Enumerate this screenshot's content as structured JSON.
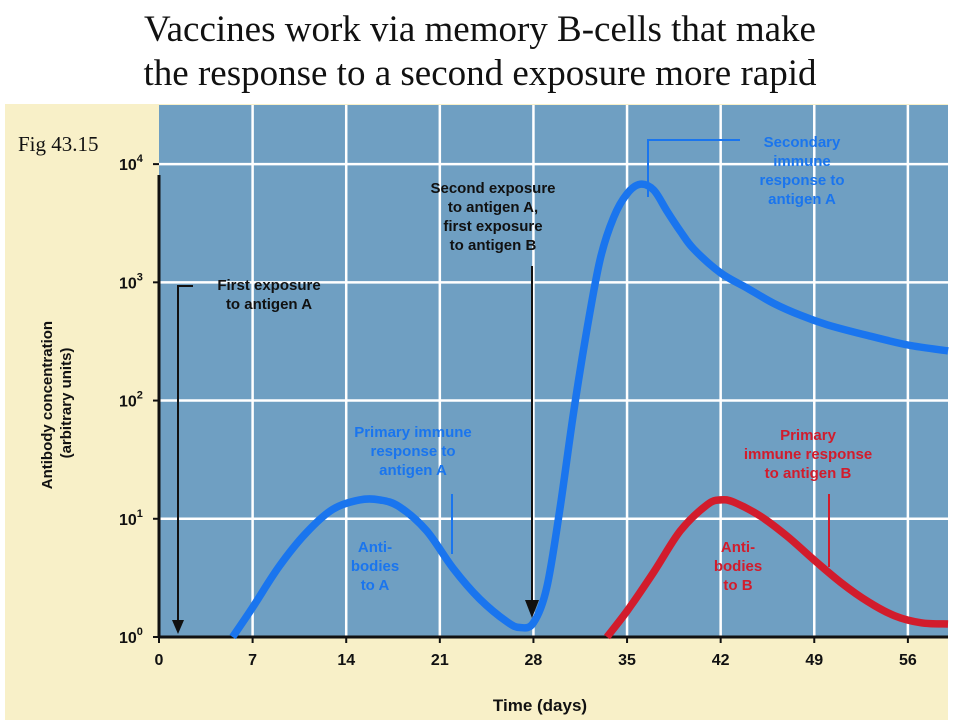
{
  "slide": {
    "title_line1": "Vaccines work via memory B-cells that make",
    "title_line2": "the response to a second exposure more rapid",
    "fig_label": "Fig 43.15"
  },
  "chart_data": {
    "type": "line",
    "xlabel": "Time (days)",
    "ylabel_line1": "Antibody concentration",
    "ylabel_line2": "(arbitrary units)",
    "x_ticks": [
      0,
      7,
      14,
      21,
      28,
      35,
      42,
      49,
      56
    ],
    "xlim": [
      0,
      59
    ],
    "y_scale": "log",
    "y_ticks": [
      {
        "base": "10",
        "exp": "0",
        "value": 1
      },
      {
        "base": "10",
        "exp": "1",
        "value": 10
      },
      {
        "base": "10",
        "exp": "2",
        "value": 100
      },
      {
        "base": "10",
        "exp": "3",
        "value": 1000
      },
      {
        "base": "10",
        "exp": "4",
        "value": 10000
      }
    ],
    "ylim_log10": [
      0,
      4.5
    ],
    "grid": true,
    "colors": {
      "plot_bg": "#6f9fc2",
      "grid": "#ffffff",
      "antigen_a": "#1a75ee",
      "antigen_b": "#d21c2c",
      "figure_bg": "#f8f0c8"
    },
    "series": [
      {
        "id": "antigen_a",
        "points": [
          [
            5.5,
            0
          ],
          [
            7,
            0.25
          ],
          [
            9,
            0.6
          ],
          [
            11,
            0.88
          ],
          [
            13,
            1.08
          ],
          [
            15,
            1.16
          ],
          [
            16.5,
            1.16
          ],
          [
            18,
            1.1
          ],
          [
            20,
            0.9
          ],
          [
            22,
            0.58
          ],
          [
            24,
            0.32
          ],
          [
            26,
            0.13
          ],
          [
            27,
            0.08
          ],
          [
            28,
            0.12
          ],
          [
            29,
            0.42
          ],
          [
            30,
            1.1
          ],
          [
            31,
            1.9
          ],
          [
            32,
            2.6
          ],
          [
            33,
            3.2
          ],
          [
            34,
            3.55
          ],
          [
            35,
            3.75
          ],
          [
            36,
            3.83
          ],
          [
            37,
            3.78
          ],
          [
            38,
            3.6
          ],
          [
            39,
            3.43
          ],
          [
            40,
            3.28
          ],
          [
            42,
            3.08
          ],
          [
            44,
            2.95
          ],
          [
            46,
            2.82
          ],
          [
            48,
            2.72
          ],
          [
            50,
            2.64
          ],
          [
            53,
            2.55
          ],
          [
            56,
            2.47
          ],
          [
            59,
            2.42
          ]
        ]
      },
      {
        "id": "antigen_b",
        "points": [
          [
            33.5,
            0
          ],
          [
            35,
            0.22
          ],
          [
            37,
            0.55
          ],
          [
            39,
            0.9
          ],
          [
            41,
            1.12
          ],
          [
            42,
            1.16
          ],
          [
            43,
            1.14
          ],
          [
            45,
            1.02
          ],
          [
            47,
            0.85
          ],
          [
            49,
            0.65
          ],
          [
            51,
            0.46
          ],
          [
            53,
            0.3
          ],
          [
            55,
            0.18
          ],
          [
            57,
            0.12
          ],
          [
            59,
            0.11
          ]
        ]
      }
    ],
    "annotations": {
      "first_exposure": [
        "First exposure",
        "to antigen A"
      ],
      "second_exposure": [
        "Second exposure",
        "to antigen A,",
        "first exposure",
        "to antigen B"
      ],
      "secondary_response": [
        "Secondary",
        "immune",
        "response to",
        "antigen A"
      ],
      "primary_response_a": [
        "Primary immune",
        "response to",
        "antigen A"
      ],
      "antibodies_a": [
        "Anti-",
        "bodies",
        "to A"
      ],
      "primary_response_b": [
        "Primary",
        "immune response",
        "to antigen B"
      ],
      "antibodies_b": [
        "Anti-",
        "bodies",
        "to B"
      ]
    }
  }
}
